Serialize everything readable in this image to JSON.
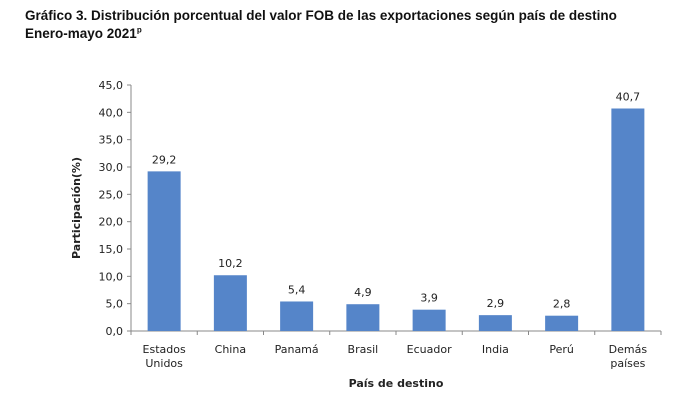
{
  "chart_data": {
    "type": "bar",
    "title": "Gráfico 3. Distribución porcentual del valor FOB de las exportaciones según país de destino",
    "subtitle": "Enero-mayo 2021",
    "subtitle_sup": "p",
    "xlabel": "País de destino",
    "ylabel": "Participación(%)",
    "ylim": [
      0,
      45
    ],
    "yticks": [
      "0,0",
      "5,0",
      "10,0",
      "15,0",
      "20,0",
      "25,0",
      "30,0",
      "35,0",
      "40,0",
      "45,0"
    ],
    "categories": [
      [
        "Estados",
        "Unidos"
      ],
      [
        "China"
      ],
      [
        "Panamá"
      ],
      [
        "Brasil"
      ],
      [
        "Ecuador"
      ],
      [
        "India"
      ],
      [
        "Perú"
      ],
      [
        "Demás",
        "países"
      ]
    ],
    "values": [
      29.2,
      10.2,
      5.4,
      4.9,
      3.9,
      2.9,
      2.8,
      40.7
    ],
    "data_labels": [
      "29,2",
      "10,2",
      "5,4",
      "4,9",
      "3,9",
      "2,9",
      "2,8",
      "40,7"
    ],
    "bar_color": "#5585c9",
    "grid": false,
    "legend": "none"
  }
}
